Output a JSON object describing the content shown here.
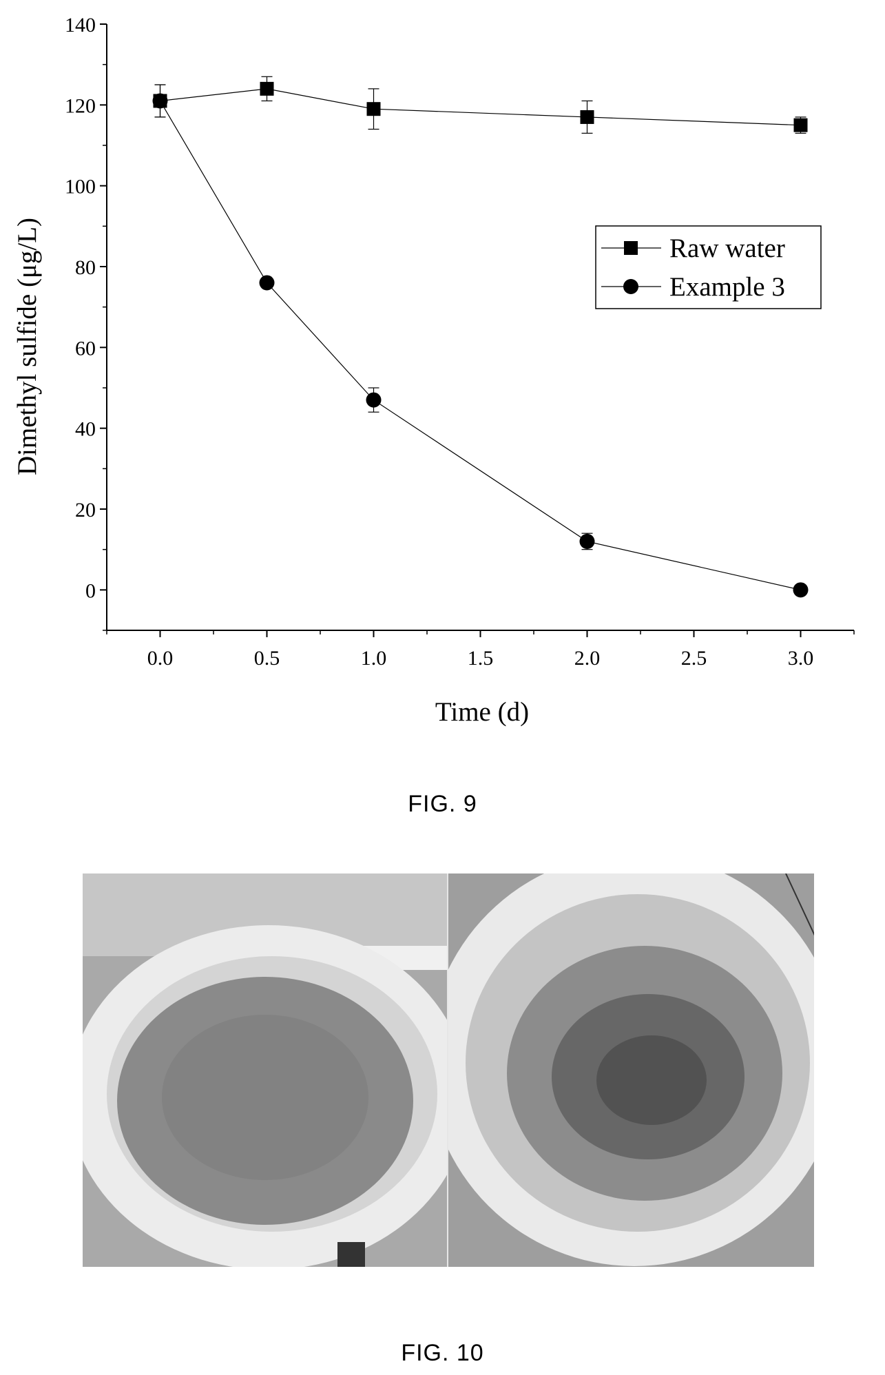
{
  "figure9": {
    "caption": "FIG. 9",
    "chart_data": {
      "type": "line",
      "title": "",
      "xlabel": "Time (d)",
      "ylabel": "Dimethyl sulfide (μg/L)",
      "xlim": [
        -0.25,
        3.25
      ],
      "ylim": [
        -10,
        140
      ],
      "x_ticks": [
        0.0,
        0.5,
        1.0,
        1.5,
        2.0,
        2.5,
        3.0
      ],
      "x_tick_labels": [
        "0.0",
        "0.5",
        "1.0",
        "1.5",
        "2.0",
        "2.5",
        "3.0"
      ],
      "y_ticks": [
        0,
        20,
        40,
        60,
        80,
        100,
        120,
        140
      ],
      "y_tick_labels": [
        "0",
        "20",
        "40",
        "60",
        "80",
        "100",
        "120",
        "140"
      ],
      "grid": false,
      "legend_position": "right-middle",
      "series": [
        {
          "name": "Raw water",
          "marker": "square",
          "x": [
            0.0,
            0.5,
            1.0,
            2.0,
            3.0
          ],
          "y": [
            121,
            124,
            119,
            117,
            115
          ],
          "error": [
            4,
            3,
            5,
            4,
            2
          ]
        },
        {
          "name": "Example 3",
          "marker": "circle",
          "x": [
            0.0,
            0.5,
            1.0,
            2.0,
            3.0
          ],
          "y": [
            121,
            76,
            47,
            12,
            0
          ],
          "error": [
            4,
            1,
            3,
            2,
            1
          ]
        }
      ]
    }
  },
  "figure10": {
    "caption": "FIG. 10"
  },
  "colors": {
    "ink": "#000000",
    "background": "#ffffff"
  }
}
